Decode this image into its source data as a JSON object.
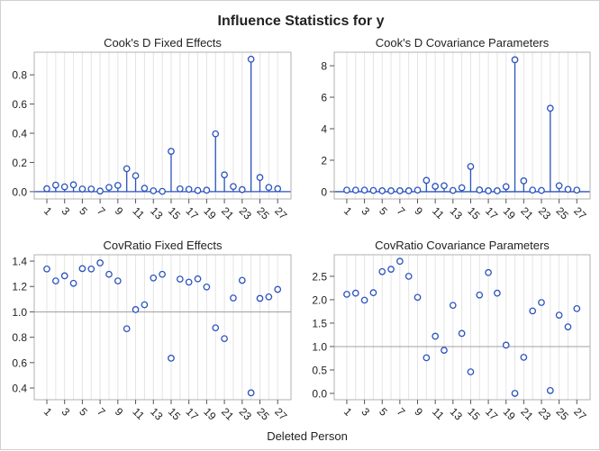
{
  "title": "Influence Statistics for y",
  "xlabel": "Deleted Person",
  "colors": {
    "marker": "#2a52be",
    "stem": "#2a52be",
    "refline": "#a0a0a0",
    "grid": "#e4e4e4",
    "frame": "#b0b0b0"
  },
  "chart_data": [
    {
      "type": "needle",
      "title": "Cook's D Fixed Effects",
      "x": [
        1,
        2,
        3,
        4,
        5,
        6,
        7,
        8,
        9,
        10,
        11,
        12,
        13,
        14,
        15,
        16,
        17,
        18,
        19,
        20,
        21,
        22,
        23,
        24,
        25,
        26,
        27
      ],
      "values": [
        0.02,
        0.045,
        0.033,
        0.047,
        0.018,
        0.018,
        0.004,
        0.029,
        0.043,
        0.157,
        0.109,
        0.023,
        0.006,
        0.002,
        0.276,
        0.019,
        0.016,
        0.008,
        0.01,
        0.396,
        0.115,
        0.035,
        0.014,
        0.907,
        0.097,
        0.029,
        0.02
      ],
      "xticks": [
        "1",
        "3",
        "5",
        "7",
        "9",
        "11",
        "13",
        "15",
        "17",
        "19",
        "21",
        "23",
        "25",
        "27"
      ],
      "yticks": [
        "0.0",
        "0.2",
        "0.4",
        "0.6",
        "0.8"
      ],
      "ylim": [
        -0.05,
        0.955
      ],
      "reference_y": 0,
      "grid": "vertical"
    },
    {
      "type": "needle",
      "title": "Cook's D Covariance Parameters",
      "x": [
        1,
        2,
        3,
        4,
        5,
        6,
        7,
        8,
        9,
        10,
        11,
        12,
        13,
        14,
        15,
        16,
        17,
        18,
        19,
        20,
        21,
        22,
        23,
        24,
        25,
        26,
        27
      ],
      "values": [
        0.1,
        0.1,
        0.1,
        0.08,
        0.06,
        0.06,
        0.06,
        0.06,
        0.1,
        0.72,
        0.34,
        0.38,
        0.08,
        0.25,
        1.6,
        0.11,
        0.06,
        0.06,
        0.32,
        8.38,
        0.69,
        0.1,
        0.08,
        5.3,
        0.38,
        0.15,
        0.1
      ],
      "xticks": [
        "1",
        "3",
        "5",
        "7",
        "9",
        "11",
        "13",
        "15",
        "17",
        "19",
        "21",
        "23",
        "25",
        "27"
      ],
      "yticks": [
        "0",
        "2",
        "4",
        "6",
        "8"
      ],
      "ylim": [
        -0.46,
        8.86
      ],
      "reference_y": 0,
      "grid": "vertical"
    },
    {
      "type": "scatter",
      "title": "CovRatio Fixed Effects",
      "x": [
        1,
        2,
        3,
        4,
        5,
        6,
        7,
        8,
        9,
        10,
        11,
        12,
        13,
        14,
        15,
        16,
        17,
        18,
        19,
        20,
        21,
        22,
        23,
        24,
        25,
        26,
        27
      ],
      "values": [
        1.338,
        1.244,
        1.284,
        1.225,
        1.341,
        1.338,
        1.386,
        1.296,
        1.244,
        0.867,
        1.018,
        1.056,
        1.267,
        1.296,
        0.635,
        1.258,
        1.234,
        1.26,
        1.196,
        0.874,
        0.789,
        1.109,
        1.248,
        0.362,
        1.106,
        1.118,
        1.177
      ],
      "xticks": [
        "1",
        "3",
        "5",
        "7",
        "9",
        "11",
        "13",
        "15",
        "17",
        "19",
        "21",
        "23",
        "25",
        "27"
      ],
      "yticks": [
        "0.4",
        "0.6",
        "0.8",
        "1.0",
        "1.2",
        "1.4"
      ],
      "ylim": [
        0.308,
        1.45
      ],
      "reference_y": 1.0,
      "grid": "vertical"
    },
    {
      "type": "scatter",
      "title": "CovRatio Covariance Parameters",
      "x": [
        1,
        2,
        3,
        4,
        5,
        6,
        7,
        8,
        9,
        10,
        11,
        12,
        13,
        14,
        15,
        16,
        17,
        18,
        19,
        20,
        21,
        22,
        23,
        24,
        25,
        26,
        27
      ],
      "values": [
        2.115,
        2.14,
        1.99,
        2.15,
        2.6,
        2.65,
        2.82,
        2.5,
        2.05,
        0.76,
        1.22,
        0.92,
        1.88,
        1.28,
        0.46,
        2.1,
        2.58,
        2.14,
        1.03,
        0.0,
        0.77,
        1.76,
        1.94,
        0.06,
        1.67,
        1.42,
        1.81
      ],
      "xticks": [
        "1",
        "3",
        "5",
        "7",
        "9",
        "11",
        "13",
        "15",
        "17",
        "19",
        "21",
        "23",
        "25",
        "27"
      ],
      "yticks": [
        "0.0",
        "0.5",
        "1.0",
        "1.5",
        "2.0",
        "2.5"
      ],
      "ylim": [
        -0.135,
        2.96
      ],
      "reference_y": 1.0,
      "grid": "vertical"
    }
  ]
}
